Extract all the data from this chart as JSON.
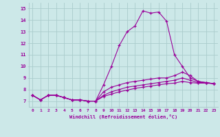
{
  "background_color": "#cce8e8",
  "grid_color": "#aacccc",
  "line_color": "#990099",
  "marker": "+",
  "xlabel": "Windchill (Refroidissement éolien,°C)",
  "xlabel_color": "#990099",
  "ylim": [
    6.5,
    15.5
  ],
  "xlim": [
    -0.5,
    23.5
  ],
  "yticks": [
    7,
    8,
    9,
    10,
    11,
    12,
    13,
    14,
    15
  ],
  "xticks": [
    0,
    1,
    2,
    3,
    4,
    5,
    6,
    7,
    8,
    9,
    10,
    11,
    12,
    13,
    14,
    15,
    16,
    17,
    18,
    19,
    20,
    21,
    22,
    23
  ],
  "series": [
    [
      7.5,
      7.1,
      7.5,
      7.5,
      7.3,
      7.1,
      7.1,
      7.0,
      7.0,
      8.4,
      10.0,
      11.8,
      13.0,
      13.5,
      14.8,
      14.6,
      14.7,
      13.9,
      11.0,
      10.0,
      9.0,
      8.7,
      8.6,
      8.5
    ],
    [
      7.5,
      7.1,
      7.5,
      7.5,
      7.3,
      7.1,
      7.1,
      7.0,
      7.0,
      7.8,
      8.2,
      8.4,
      8.6,
      8.7,
      8.8,
      8.9,
      9.0,
      9.0,
      9.2,
      9.5,
      9.2,
      8.7,
      8.6,
      8.5
    ],
    [
      7.5,
      7.1,
      7.5,
      7.5,
      7.3,
      7.1,
      7.1,
      7.0,
      7.0,
      7.5,
      7.8,
      8.0,
      8.2,
      8.3,
      8.4,
      8.5,
      8.6,
      8.7,
      8.8,
      9.0,
      8.8,
      8.6,
      8.6,
      8.5
    ],
    [
      7.5,
      7.1,
      7.5,
      7.5,
      7.3,
      7.1,
      7.1,
      7.0,
      7.0,
      7.4,
      7.6,
      7.8,
      7.95,
      8.1,
      8.2,
      8.3,
      8.4,
      8.5,
      8.55,
      8.7,
      8.6,
      8.55,
      8.55,
      8.5
    ]
  ]
}
